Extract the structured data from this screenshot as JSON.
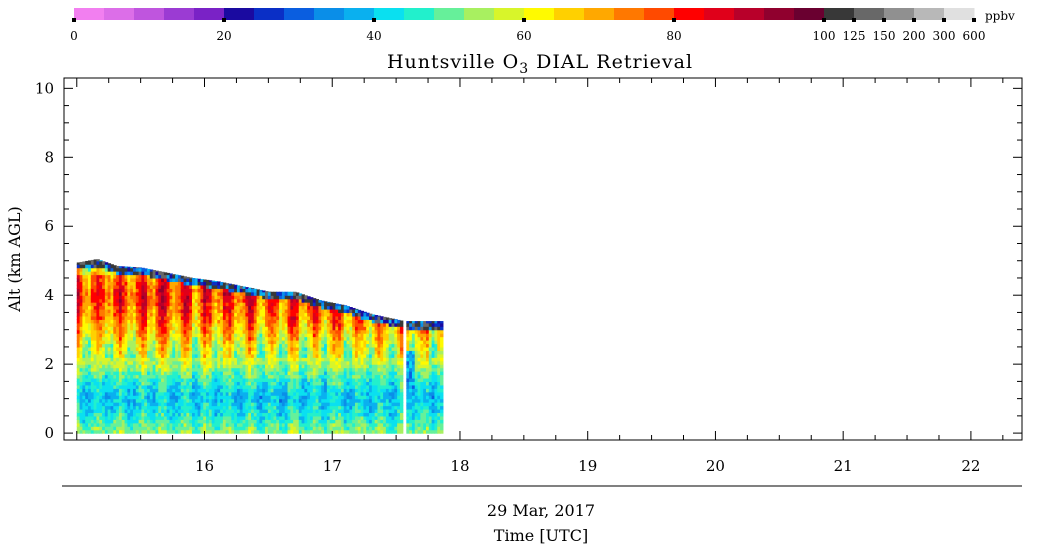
{
  "chart_data": {
    "type": "heatmap",
    "title": "Huntsville O",
    "title_subscript": "3",
    "title_suffix": " DIAL Retrieval",
    "ylabel": "Alt (km AGL)",
    "date_label": "29 Mar, 2017",
    "xlabel": "Time [UTC]",
    "xlim": [
      14.9,
      22.4
    ],
    "ylim": [
      -0.2,
      10.3
    ],
    "x_ticks": [
      16,
      17,
      18,
      19,
      20,
      21,
      22
    ],
    "y_ticks": [
      0,
      2,
      4,
      6,
      8,
      10
    ],
    "colorbar": {
      "unit": "ppbv",
      "tick_labels": [
        "0",
        "20",
        "40",
        "60",
        "80",
        "100",
        "125",
        "150",
        "200",
        "300",
        "600"
      ],
      "colors": [
        "#f27ff0",
        "#dc6ee8",
        "#bf55de",
        "#9b3bd3",
        "#7a22c6",
        "#1a0aa0",
        "#0a2fc6",
        "#0a5ee0",
        "#0a8ee8",
        "#0ab0ef",
        "#0ae0f0",
        "#22f0cc",
        "#66f09a",
        "#a8f060",
        "#d8f52a",
        "#fffa00",
        "#ffd000",
        "#ffa800",
        "#ff7800",
        "#ff4a00",
        "#ff0000",
        "#e0001a",
        "#b8002a",
        "#90002e",
        "#6a0030",
        "#383838",
        "#686868",
        "#909090",
        "#b8b8b8",
        "#e0e0e0"
      ]
    },
    "series": [
      {
        "x_range": [
          15.0,
          17.55
        ],
        "y_range": [
          0,
          5.0
        ],
        "top_profile": {
          "x": [
            15.0,
            15.15,
            15.3,
            15.5,
            15.7,
            15.9,
            16.1,
            16.3,
            16.5,
            16.7,
            16.9,
            17.1,
            17.3,
            17.55
          ],
          "y": [
            4.95,
            5.05,
            4.85,
            4.8,
            4.65,
            4.5,
            4.4,
            4.25,
            4.1,
            4.1,
            3.85,
            3.7,
            3.45,
            3.25
          ]
        }
      },
      {
        "x_range": [
          17.58,
          17.85
        ],
        "y_range": [
          0,
          3.25
        ]
      }
    ],
    "concentration_profile": {
      "y": [
        0,
        0.5,
        1.0,
        1.5,
        2.0,
        2.5,
        3.0,
        3.5,
        4.0,
        4.5,
        5.0
      ],
      "ppbv": [
        52,
        44,
        40,
        46,
        56,
        60,
        70,
        76,
        80,
        74,
        45
      ]
    }
  }
}
